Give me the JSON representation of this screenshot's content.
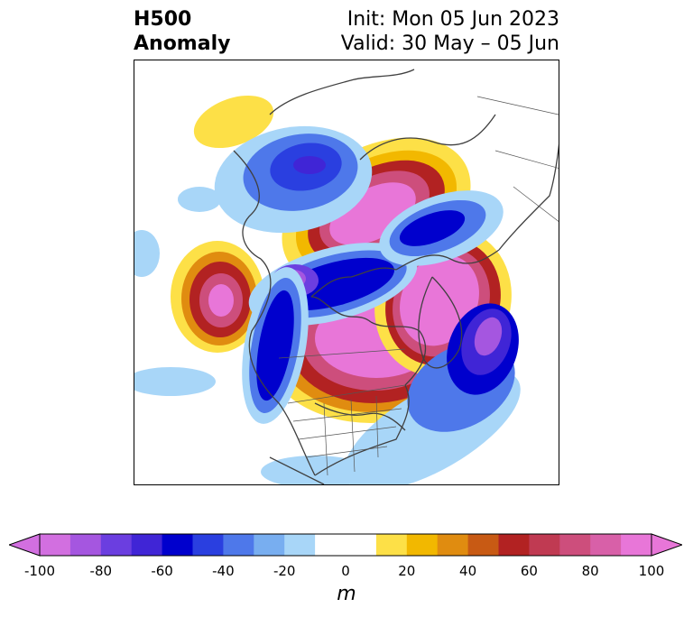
{
  "title": {
    "left_line1": "H500",
    "left_line2": "Anomaly",
    "right_line1": "Init: Mon 05 Jun 2023",
    "right_line2": "Valid: 30 May – 05 Jun"
  },
  "colorbar": {
    "label": "m",
    "range": [
      -100,
      100
    ],
    "step": 10,
    "extend": "both",
    "ticks": [
      "-100",
      "-80",
      "-60",
      "-40",
      "-20",
      "0",
      "20",
      "40",
      "60",
      "80",
      "100"
    ],
    "colors": [
      "#d26fe0",
      "#a556e0",
      "#6b3ee0",
      "#4025d6",
      "#0000cd",
      "#2a3fe0",
      "#4e78ea",
      "#78aef0",
      "#a8d6f8",
      "#ffffff",
      "#ffffff",
      "#fde047",
      "#f2b800",
      "#e08c10",
      "#c85a14",
      "#b22222",
      "#c03a52",
      "#cd4e7c",
      "#d860a8",
      "#e876d8"
    ]
  },
  "map": {
    "projection": "polar-stereographic",
    "field": "500 hPa geopotential height anomaly"
  }
}
